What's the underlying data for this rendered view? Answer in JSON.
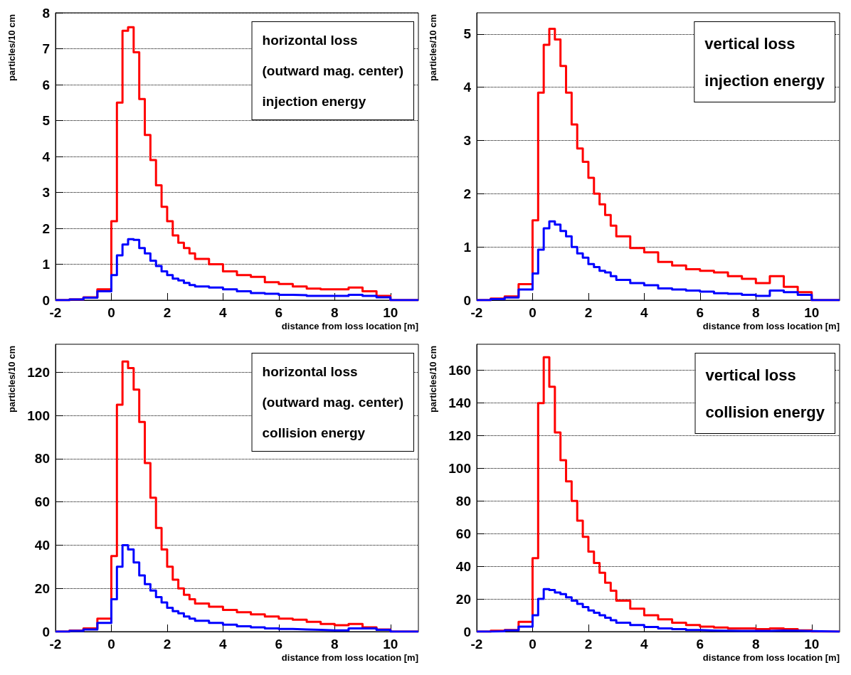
{
  "chart_data": [
    {
      "type": "histogram",
      "ylabel": "particles/10 cm",
      "xlabel": "distance from loss location [m]",
      "annotations": [
        "horizontal loss",
        "(outward mag. center)",
        "injection energy"
      ],
      "xlim": [
        -2,
        11
      ],
      "xticks": [
        -2,
        0,
        2,
        4,
        6,
        8,
        10
      ],
      "ylim": [
        0,
        8
      ],
      "yticks": [
        0,
        1,
        2,
        3,
        4,
        5,
        6,
        7,
        8
      ],
      "grid": "y",
      "bins": [
        -2,
        -1.5,
        -1,
        -0.5,
        0,
        0.2,
        0.4,
        0.6,
        0.8,
        1.0,
        1.2,
        1.4,
        1.6,
        1.8,
        2.0,
        2.2,
        2.4,
        2.6,
        2.8,
        3.0,
        3.5,
        4,
        4.5,
        5,
        5.5,
        6,
        6.5,
        7,
        7.5,
        8,
        8.5,
        9,
        9.5,
        10,
        11
      ],
      "series": [
        {
          "color": "#ff0000",
          "values": [
            0,
            0.02,
            0.08,
            0.3,
            2.2,
            5.5,
            7.5,
            7.6,
            6.9,
            5.6,
            4.6,
            3.9,
            3.2,
            2.6,
            2.2,
            1.8,
            1.6,
            1.45,
            1.3,
            1.15,
            1.0,
            0.8,
            0.7,
            0.65,
            0.5,
            0.45,
            0.38,
            0.32,
            0.3,
            0.3,
            0.35,
            0.25,
            0.12,
            0
          ]
        },
        {
          "color": "#0000ff",
          "values": [
            0,
            0.02,
            0.07,
            0.25,
            0.7,
            1.25,
            1.55,
            1.7,
            1.68,
            1.45,
            1.3,
            1.1,
            0.95,
            0.8,
            0.7,
            0.6,
            0.55,
            0.48,
            0.42,
            0.38,
            0.35,
            0.3,
            0.25,
            0.2,
            0.18,
            0.15,
            0.14,
            0.12,
            0.12,
            0.12,
            0.15,
            0.12,
            0.08,
            0
          ]
        }
      ]
    },
    {
      "type": "histogram",
      "ylabel": "particles/10 cm",
      "xlabel": "distance from loss location [m]",
      "annotations": [
        "vertical loss",
        "injection energy"
      ],
      "xlim": [
        -2,
        11
      ],
      "xticks": [
        -2,
        0,
        2,
        4,
        6,
        8,
        10
      ],
      "ylim": [
        0,
        5.4
      ],
      "yticks": [
        0,
        1,
        2,
        3,
        4,
        5
      ],
      "grid": "y",
      "bins": [
        -2,
        -1.5,
        -1,
        -0.5,
        0,
        0.2,
        0.4,
        0.6,
        0.8,
        1.0,
        1.2,
        1.4,
        1.6,
        1.8,
        2.0,
        2.2,
        2.4,
        2.6,
        2.8,
        3.0,
        3.5,
        4,
        4.5,
        5,
        5.5,
        6,
        6.5,
        7,
        7.5,
        8,
        8.5,
        9,
        9.5,
        10,
        11
      ],
      "series": [
        {
          "color": "#ff0000",
          "values": [
            0,
            0.03,
            0.07,
            0.3,
            1.5,
            3.9,
            4.8,
            5.1,
            4.9,
            4.4,
            3.9,
            3.3,
            2.85,
            2.6,
            2.3,
            2.0,
            1.8,
            1.6,
            1.4,
            1.2,
            0.98,
            0.9,
            0.72,
            0.65,
            0.58,
            0.55,
            0.52,
            0.45,
            0.4,
            0.32,
            0.45,
            0.25,
            0.15,
            0
          ]
        },
        {
          "color": "#0000ff",
          "values": [
            0,
            0.02,
            0.05,
            0.2,
            0.5,
            0.95,
            1.35,
            1.48,
            1.42,
            1.3,
            1.2,
            1.0,
            0.88,
            0.8,
            0.68,
            0.62,
            0.55,
            0.52,
            0.45,
            0.38,
            0.32,
            0.28,
            0.22,
            0.2,
            0.18,
            0.16,
            0.13,
            0.12,
            0.1,
            0.08,
            0.18,
            0.15,
            0.1,
            0
          ]
        }
      ]
    },
    {
      "type": "histogram",
      "ylabel": "particles/10 cm",
      "xlabel": "distance from loss location [m]",
      "annotations": [
        "horizontal loss",
        "(outward mag. center)",
        "collision energy"
      ],
      "xlim": [
        -2,
        11
      ],
      "xticks": [
        -2,
        0,
        2,
        4,
        6,
        8,
        10
      ],
      "ylim": [
        0,
        133
      ],
      "yticks": [
        0,
        20,
        40,
        60,
        80,
        100,
        120
      ],
      "grid": "y",
      "bins": [
        -2,
        -1.5,
        -1,
        -0.5,
        0,
        0.2,
        0.4,
        0.6,
        0.8,
        1.0,
        1.2,
        1.4,
        1.6,
        1.8,
        2.0,
        2.2,
        2.4,
        2.6,
        2.8,
        3.0,
        3.5,
        4,
        4.5,
        5,
        5.5,
        6,
        6.5,
        7,
        7.5,
        8,
        8.5,
        9,
        9.5,
        10,
        11
      ],
      "series": [
        {
          "color": "#ff0000",
          "values": [
            0,
            0.5,
            1.5,
            6,
            35,
            105,
            125,
            122,
            112,
            97,
            78,
            62,
            48,
            38,
            30,
            24,
            20,
            17,
            15,
            13,
            11.5,
            10,
            9,
            8,
            7,
            6,
            5.5,
            4.5,
            3.5,
            3,
            3.5,
            2,
            1,
            0
          ]
        },
        {
          "color": "#0000ff",
          "values": [
            0,
            0.3,
            1,
            4,
            15,
            30,
            40,
            38,
            32,
            26,
            22,
            19,
            16,
            13.5,
            11,
            9.5,
            8.5,
            7,
            6,
            5,
            4,
            3.2,
            2.5,
            2,
            1.5,
            1.2,
            1,
            0.8,
            0.6,
            0.6,
            1.5,
            1.5,
            0.8,
            0
          ]
        }
      ]
    },
    {
      "type": "histogram",
      "ylabel": "particles/10 cm",
      "xlabel": "distance from loss location [m]",
      "annotations": [
        "vertical loss",
        "collision energy"
      ],
      "xlim": [
        -2,
        11
      ],
      "xticks": [
        -2,
        0,
        2,
        4,
        6,
        8,
        10
      ],
      "ylim": [
        0,
        176
      ],
      "yticks": [
        0,
        20,
        40,
        60,
        80,
        100,
        120,
        140,
        160
      ],
      "grid": "y",
      "bins": [
        -2,
        -1.5,
        -1,
        -0.5,
        0,
        0.2,
        0.4,
        0.6,
        0.8,
        1.0,
        1.2,
        1.4,
        1.6,
        1.8,
        2.0,
        2.2,
        2.4,
        2.6,
        2.8,
        3.0,
        3.5,
        4,
        4.5,
        5,
        5.5,
        6,
        6.5,
        7,
        7.5,
        8,
        8.5,
        9,
        9.5,
        10,
        11
      ],
      "series": [
        {
          "color": "#ff0000",
          "values": [
            0,
            0.5,
            1,
            6,
            45,
            140,
            168,
            150,
            122,
            105,
            92,
            80,
            68,
            58,
            49,
            42,
            36,
            30,
            25,
            19,
            14,
            10,
            7.5,
            5.5,
            4,
            3,
            2.5,
            2,
            2,
            1.5,
            2,
            1.5,
            0.8,
            0
          ]
        },
        {
          "color": "#0000ff",
          "values": [
            0,
            0.2,
            0.8,
            3,
            10,
            20,
            26,
            25.5,
            24,
            23,
            21,
            19,
            17,
            15,
            13,
            11.5,
            10,
            8.5,
            7,
            5.5,
            4,
            2.8,
            2,
            1.5,
            1,
            0.7,
            0.5,
            0.4,
            0.4,
            0.4,
            0.6,
            0.5,
            0.3,
            0
          ]
        }
      ]
    }
  ]
}
